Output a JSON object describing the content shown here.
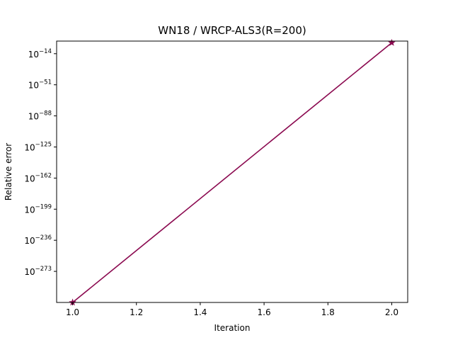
{
  "chart_data": {
    "type": "line",
    "title": "WN18 / WRCP-ALS3(R=200)",
    "xlabel": "Iteration",
    "ylabel": "Relative error",
    "xlim": [
      0.95,
      2.05
    ],
    "xticks": [
      1.0,
      1.2,
      1.4,
      1.6,
      1.8,
      2.0
    ],
    "xtick_labels": [
      "1.0",
      "1.2",
      "1.4",
      "1.6",
      "1.8",
      "2.0"
    ],
    "yscale": "log",
    "ylim_exponent": [
      -310,
      1
    ],
    "yticks_exponent": [
      -14,
      -51,
      -88,
      -125,
      -162,
      -199,
      -236,
      -273
    ],
    "ytick_labels": [
      {
        "base": "10",
        "exp": "−14"
      },
      {
        "base": "10",
        "exp": "−51"
      },
      {
        "base": "10",
        "exp": "−88"
      },
      {
        "base": "10",
        "exp": "−125"
      },
      {
        "base": "10",
        "exp": "−162"
      },
      {
        "base": "10",
        "exp": "−199"
      },
      {
        "base": "10",
        "exp": "−236"
      },
      {
        "base": "10",
        "exp": "−273"
      }
    ],
    "grid": false,
    "legend": "none",
    "series": [
      {
        "x": [
          1.0,
          2.0
        ],
        "y_exponent": [
          -310,
          -1
        ],
        "color": "#8b0a50",
        "marker": "star"
      }
    ]
  }
}
